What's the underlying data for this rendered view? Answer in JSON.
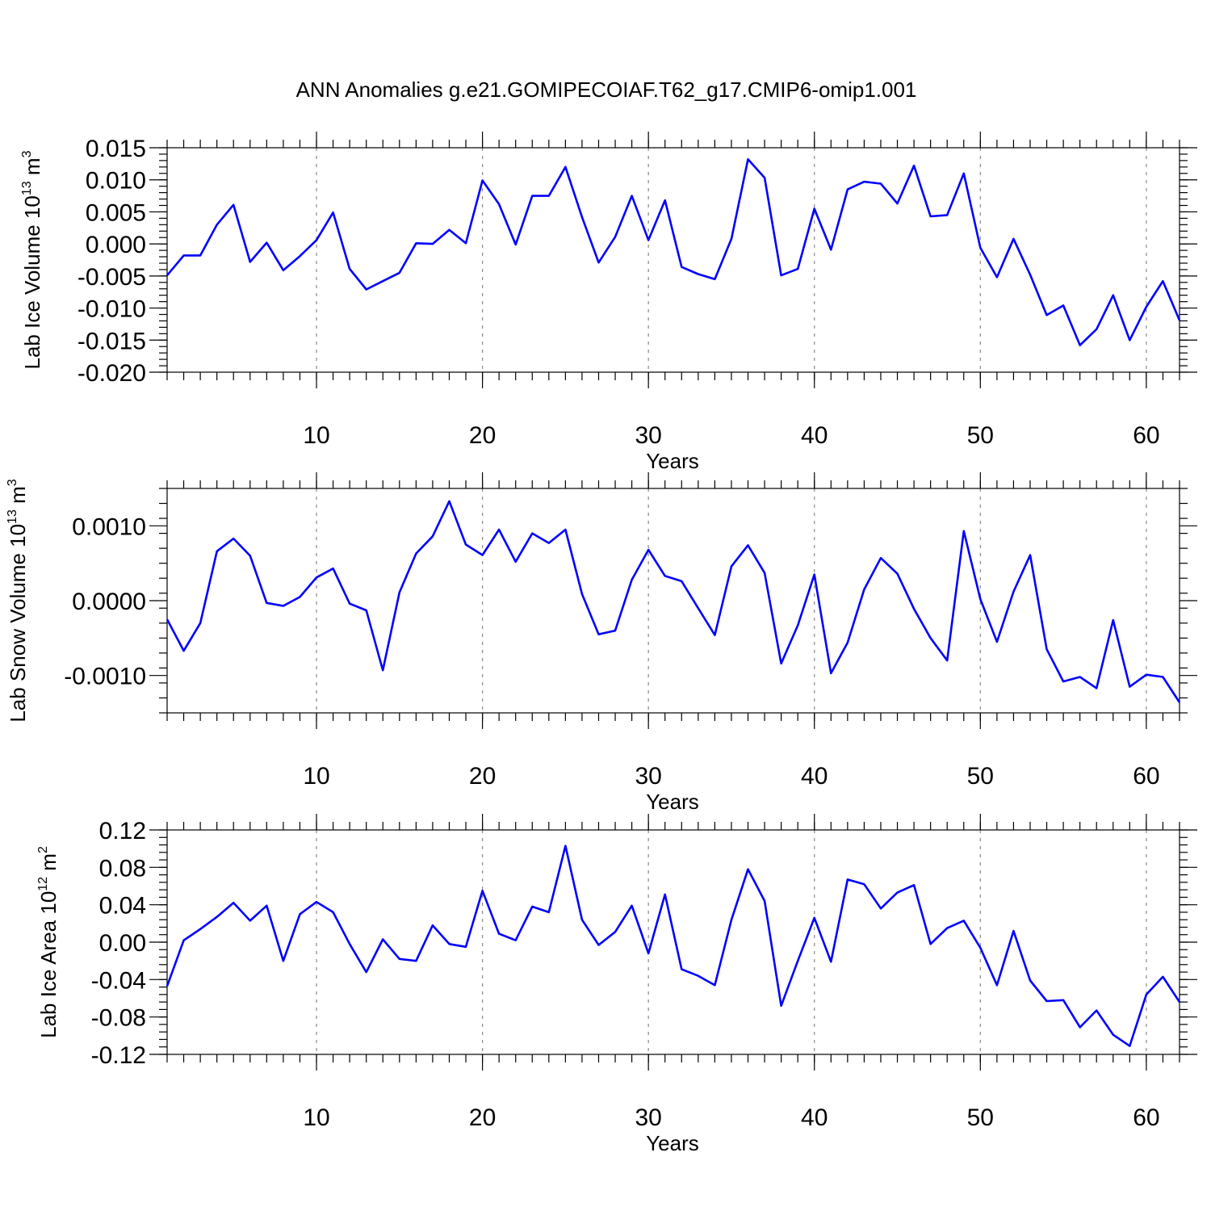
{
  "figure": {
    "title": "ANN Anomalies g.e21.GOMIPECOIAF.T62_g17.CMIP6-omip1.001"
  },
  "colors": {
    "series": "#0000ff",
    "grid": "#888888",
    "axis": "#000000"
  },
  "chart_data": [
    {
      "type": "line",
      "title": "",
      "xlabel": "Years",
      "ylabel": {
        "main": "Lab Ice Volume 10",
        "exp": "13",
        "unit": " m",
        "unit_exp": "3"
      },
      "xlim": [
        1,
        62
      ],
      "ylim": [
        -0.02,
        0.015
      ],
      "xticks": [
        10,
        20,
        30,
        40,
        50,
        60
      ],
      "xtick_labels": [
        "10",
        "20",
        "30",
        "40",
        "50",
        "60"
      ],
      "yticks": [
        0.015,
        0.01,
        0.005,
        0.0,
        -0.005,
        -0.01,
        -0.015,
        -0.02
      ],
      "ytick_labels": [
        "0.015",
        "0.010",
        "0.005",
        "0.000",
        "-0.005",
        "-0.010",
        "-0.015",
        "-0.020"
      ],
      "grid": "dashed vertical at major x ticks",
      "series": [
        {
          "x": [
            1,
            2,
            3,
            4,
            5,
            6,
            7,
            8,
            9,
            10,
            11,
            12,
            13,
            14,
            15,
            16,
            17,
            18,
            19,
            20,
            21,
            22,
            23,
            24,
            25,
            26,
            27,
            28,
            29,
            30,
            31,
            32,
            33,
            34,
            35,
            36,
            37,
            38,
            39,
            40,
            41,
            42,
            43,
            44,
            45,
            46,
            47,
            48,
            49,
            50,
            51,
            52,
            53,
            54,
            55,
            56,
            57,
            58,
            59,
            60,
            61,
            62
          ],
          "values": [
            -0.0049,
            -0.0018,
            -0.0018,
            0.003,
            0.0061,
            -0.0028,
            0.0002,
            -0.0041,
            -0.0019,
            0.0006,
            0.0049,
            -0.0039,
            -0.0071,
            -0.0058,
            -0.0045,
            0.0001,
            0.0,
            0.0022,
            0.0001,
            0.0099,
            0.0062,
            -0.0001,
            0.0075,
            0.0075,
            0.012,
            0.0042,
            -0.0029,
            0.0011,
            0.0075,
            0.0006,
            0.0068,
            -0.0036,
            -0.0047,
            -0.0055,
            0.0008,
            0.0132,
            0.0103,
            -0.0049,
            -0.0039,
            0.0055,
            -0.0009,
            0.0085,
            0.0097,
            0.0094,
            0.0063,
            0.0122,
            0.0043,
            0.0045,
            0.011,
            -0.0006,
            -0.0052,
            0.0008,
            -0.0048,
            -0.0111,
            -0.0096,
            -0.0158,
            -0.0133,
            -0.008,
            -0.015,
            -0.0098,
            -0.0058,
            -0.0119
          ]
        }
      ]
    },
    {
      "type": "line",
      "title": "",
      "xlabel": "Years",
      "ylabel": {
        "main": "Lab Snow Volume 10",
        "exp": "13",
        "unit": " m",
        "unit_exp": "3"
      },
      "xlim": [
        1,
        62
      ],
      "ylim": [
        -0.0015,
        0.0015
      ],
      "xticks": [
        10,
        20,
        30,
        40,
        50,
        60
      ],
      "xtick_labels": [
        "10",
        "20",
        "30",
        "40",
        "50",
        "60"
      ],
      "yticks": [
        0.001,
        0.0,
        -0.001
      ],
      "ytick_labels": [
        "0.0010",
        "0.0000",
        "-0.0010"
      ],
      "grid": "dashed vertical at major x ticks",
      "series": [
        {
          "x": [
            1,
            2,
            3,
            4,
            5,
            6,
            7,
            8,
            9,
            10,
            11,
            12,
            13,
            14,
            15,
            16,
            17,
            18,
            19,
            20,
            21,
            22,
            23,
            24,
            25,
            26,
            27,
            28,
            29,
            30,
            31,
            32,
            33,
            34,
            35,
            36,
            37,
            38,
            39,
            40,
            41,
            42,
            43,
            44,
            45,
            46,
            47,
            48,
            49,
            50,
            51,
            52,
            53,
            54,
            55,
            56,
            57,
            58,
            59,
            60,
            61,
            62
          ],
          "values": [
            -0.00025,
            -0.00067,
            -0.0003,
            0.00066,
            0.00083,
            0.0006,
            -3e-05,
            -7e-05,
            5e-05,
            0.00031,
            0.00043,
            -4e-05,
            -0.00013,
            -0.00093,
            0.00011,
            0.00063,
            0.00086,
            0.00133,
            0.00075,
            0.00061,
            0.00095,
            0.00052,
            0.0009,
            0.00077,
            0.00095,
            9e-05,
            -0.00045,
            -0.0004,
            0.00028,
            0.00068,
            0.00033,
            0.00026,
            -0.0001,
            -0.00046,
            0.00046,
            0.00074,
            0.00037,
            -0.00084,
            -0.00033,
            0.00035,
            -0.00097,
            -0.00056,
            0.00015,
            0.00057,
            0.00036,
            -0.00011,
            -0.0005,
            -0.0008,
            0.00093,
            2e-05,
            -0.00055,
            0.00012,
            0.00061,
            -0.00065,
            -0.00108,
            -0.00102,
            -0.00117,
            -0.00026,
            -0.00115,
            -0.00099,
            -0.00102,
            -0.00136
          ]
        }
      ]
    },
    {
      "type": "line",
      "title": "",
      "xlabel": "Years",
      "ylabel": {
        "main": "Lab Ice Area 10",
        "exp": "12",
        "unit": " m",
        "unit_exp": "2"
      },
      "xlim": [
        1,
        62
      ],
      "ylim": [
        -0.12,
        0.12
      ],
      "xticks": [
        10,
        20,
        30,
        40,
        50,
        60
      ],
      "xtick_labels": [
        "10",
        "20",
        "30",
        "40",
        "50",
        "60"
      ],
      "yticks": [
        0.12,
        0.08,
        0.04,
        0.0,
        -0.04,
        -0.08,
        -0.12
      ],
      "ytick_labels": [
        "0.12",
        "0.08",
        "0.04",
        "0.00",
        "-0.04",
        "-0.08",
        "-0.12"
      ],
      "grid": "dashed vertical at major x ticks",
      "series": [
        {
          "x": [
            1,
            2,
            3,
            4,
            5,
            6,
            7,
            8,
            9,
            10,
            11,
            12,
            13,
            14,
            15,
            16,
            17,
            18,
            19,
            20,
            21,
            22,
            23,
            24,
            25,
            26,
            27,
            28,
            29,
            30,
            31,
            32,
            33,
            34,
            35,
            36,
            37,
            38,
            39,
            40,
            41,
            42,
            43,
            44,
            45,
            46,
            47,
            48,
            49,
            50,
            51,
            52,
            53,
            54,
            55,
            56,
            57,
            58,
            59,
            60,
            61,
            62
          ],
          "values": [
            -0.047,
            0.002,
            0.014,
            0.027,
            0.042,
            0.023,
            0.039,
            -0.02,
            0.03,
            0.043,
            0.032,
            -0.002,
            -0.032,
            0.003,
            -0.018,
            -0.02,
            0.018,
            -0.002,
            -0.005,
            0.055,
            0.009,
            0.002,
            0.038,
            0.032,
            0.103,
            0.024,
            -0.003,
            0.011,
            0.039,
            -0.012,
            0.051,
            -0.029,
            -0.036,
            -0.046,
            0.024,
            0.078,
            0.044,
            -0.068,
            -0.02,
            0.026,
            -0.021,
            0.067,
            0.062,
            0.036,
            0.053,
            0.061,
            -0.002,
            0.015,
            0.023,
            -0.006,
            -0.046,
            0.012,
            -0.041,
            -0.063,
            -0.062,
            -0.091,
            -0.073,
            -0.099,
            -0.111,
            -0.056,
            -0.037,
            -0.064
          ]
        }
      ]
    }
  ]
}
